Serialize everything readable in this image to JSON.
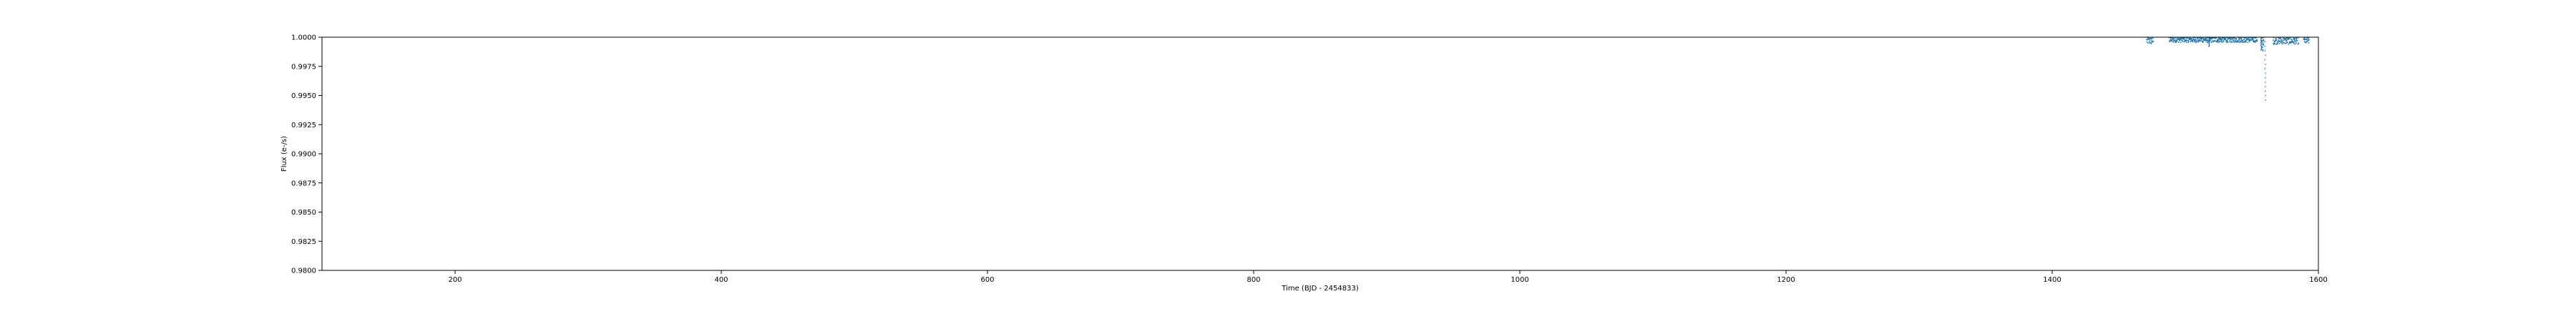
{
  "colors": {
    "series": "#1f77b4",
    "axes": "#000000",
    "background": "#ffffff"
  },
  "chart_data": {
    "type": "scatter",
    "title": "",
    "xlabel": "Time (BJD - 2454833)",
    "ylabel": "Flux (e-/s)",
    "xlim": [
      100,
      1600
    ],
    "ylim": [
      0.98,
      1.0
    ],
    "xticks": [
      "200",
      "400",
      "600",
      "800",
      "1000",
      "1200",
      "1400",
      "1600"
    ],
    "yticks": [
      "0.9800",
      "0.9825",
      "0.9850",
      "0.9875",
      "0.9900",
      "0.9925",
      "0.9950",
      "0.9975",
      "1.0000"
    ],
    "grid": false,
    "series": [
      {
        "segments": [
          {
            "x_range": [
              1471,
              1476
            ],
            "y_center": 0.9997,
            "scatter": 0.0003
          },
          {
            "x_range": [
              1488,
              1554
            ],
            "y_center": 0.9998,
            "scatter": 0.00025
          },
          {
            "x_range": [
              1557,
              1559
            ],
            "y_center": 0.9994,
            "scatter": 0.0006
          },
          {
            "x_range": [
              1566,
              1585
            ],
            "y_center": 0.9997,
            "scatter": 0.0003
          },
          {
            "x_range": [
              1589,
              1593
            ],
            "y_center": 0.9997,
            "scatter": 0.0003
          }
        ],
        "dips": [
          {
            "x": 1518,
            "y_min": 0.9992
          },
          {
            "x": 1557,
            "y_min": 0.9989
          },
          {
            "x": 1560,
            "y_min": 0.9946
          }
        ]
      }
    ]
  }
}
